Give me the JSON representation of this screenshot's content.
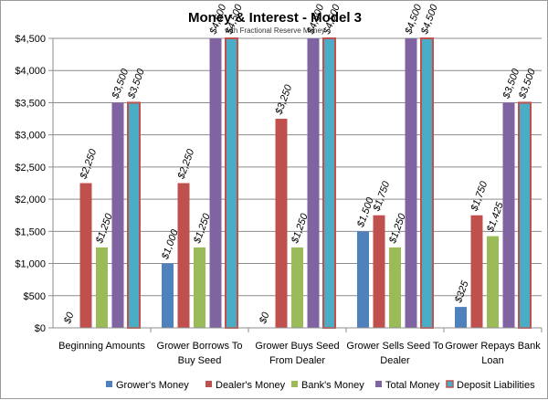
{
  "chart_data": {
    "type": "bar",
    "title": "Money & Interest - Model 3",
    "subtitle": "with Fractional Reserve Money",
    "categories": [
      [
        "Beginning Amounts"
      ],
      [
        "Grower Borrows To",
        "Buy Seed"
      ],
      [
        "Grower Buys Seed",
        "From Dealer"
      ],
      [
        "Grower Sells Seed To",
        "Dealer"
      ],
      [
        "Grower Repays Bank",
        "Loan"
      ]
    ],
    "series": [
      {
        "name": "Grower's Money",
        "color": "#4f81bd",
        "values": [
          0,
          1000,
          0,
          1500,
          325
        ],
        "labels": [
          "$0",
          "$1,000",
          "$0",
          "$1,500",
          "$325"
        ]
      },
      {
        "name": "Dealer's Money",
        "color": "#c0504d",
        "values": [
          2250,
          2250,
          3250,
          1750,
          1750
        ],
        "labels": [
          "$2,250",
          "$2,250",
          "$3,250",
          "$1,750",
          "$1,750"
        ]
      },
      {
        "name": "Bank's Money",
        "color": "#9bbb59",
        "values": [
          1250,
          1250,
          1250,
          1250,
          1425
        ],
        "labels": [
          "$1,250",
          "$1,250",
          "$1,250",
          "$1,250",
          "$1,425"
        ]
      },
      {
        "name": "Total Money",
        "color": "#8064a2",
        "values": [
          3500,
          4500,
          4500,
          4500,
          3500
        ],
        "labels": [
          "$3,500",
          "$4,500",
          "$4,500",
          "$4,500",
          "$3,500"
        ]
      },
      {
        "name": "Deposit Liabilities",
        "color": "#4bacc6",
        "border": "#c0504d",
        "values": [
          3500,
          4500,
          4500,
          4500,
          3500
        ],
        "labels": [
          "$3,500",
          "$4,500",
          "$4,500",
          "$4,500",
          "$3,500"
        ]
      }
    ],
    "ylim": [
      0,
      4500
    ],
    "yticks": [
      0,
      500,
      1000,
      1500,
      2000,
      2500,
      3000,
      3500,
      4000,
      4500
    ],
    "ytick_labels": [
      "$0",
      "$500",
      "$1,000",
      "$1,500",
      "$2,000",
      "$2,500",
      "$3,000",
      "$3,500",
      "$4,000",
      "$4,500"
    ],
    "grid": true,
    "legend_position": "bottom"
  }
}
